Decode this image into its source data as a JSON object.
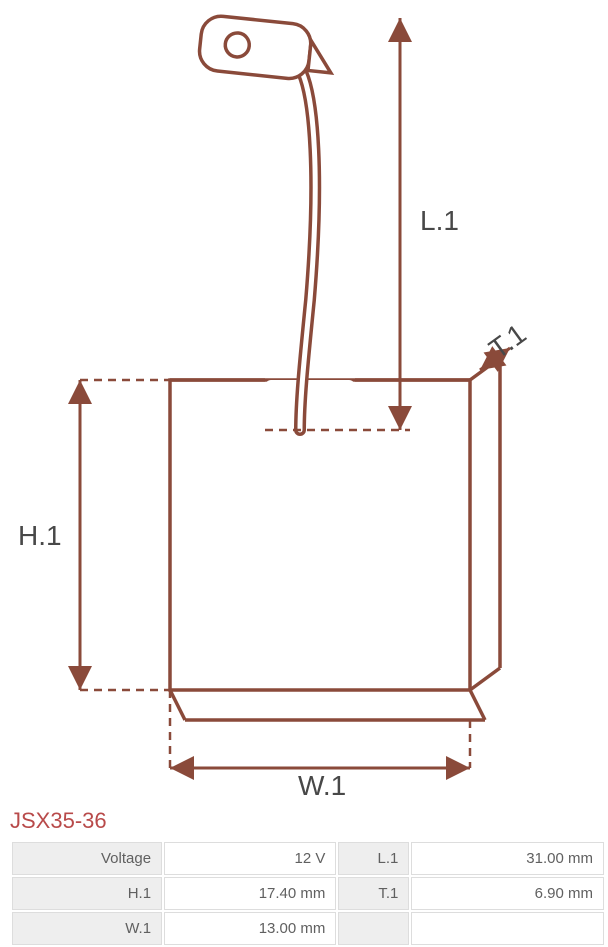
{
  "part": {
    "title": "JSX35-36"
  },
  "diagram": {
    "labels": {
      "L1": "L.1",
      "T1": "T.1",
      "H1": "H.1",
      "W1": "W.1"
    },
    "stroke_color": "#8a4a3a",
    "stroke_width": 3.5,
    "dash_pattern": "8,6",
    "text_color": "#484848",
    "label_fontsize": 28
  },
  "specs": {
    "rows": [
      {
        "l1": "Voltage",
        "v1": "12 V",
        "l2": "L.1",
        "v2": "31.00 mm"
      },
      {
        "l1": "H.1",
        "v1": "17.40 mm",
        "l2": "T.1",
        "v2": "6.90 mm"
      },
      {
        "l1": "W.1",
        "v1": "13.00 mm",
        "l2": "",
        "v2": ""
      }
    ],
    "label_bg": "#eeeeee",
    "value_bg": "#ffffff",
    "border_color": "#dddddd",
    "text_color": "#606060",
    "fontsize": 15
  },
  "title_color": "#b84a4a",
  "title_fontsize": 22
}
